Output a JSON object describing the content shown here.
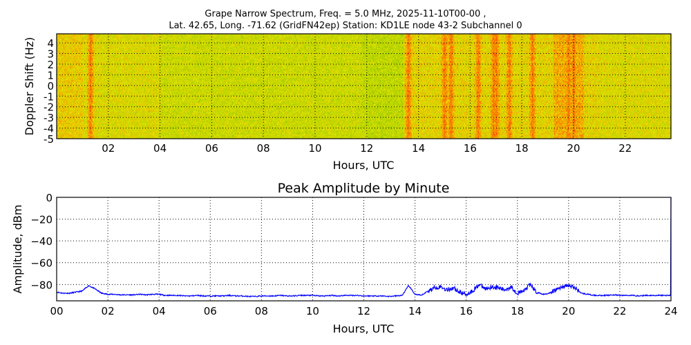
{
  "chart_data": [
    {
      "type": "heatmap",
      "title_line1": "Grape Narrow Spectrum, Freq. = 5.0 MHz, 2025-11-10T00-00 ,",
      "title_line2": "Lat.  42.65, Long. -71.62 (GridFN42ep) Station: KD1LE node 43-2 Subchannel 0",
      "xlabel": "Hours, UTC",
      "ylabel": "Doppler Shift (Hz)",
      "xlim": [
        0,
        23.77
      ],
      "ylim": [
        -5,
        4.85
      ],
      "xticks": [
        2,
        4,
        6,
        8,
        10,
        12,
        14,
        16,
        18,
        20,
        22
      ],
      "xtick_labels": [
        "02",
        "04",
        "06",
        "08",
        "10",
        "12",
        "14",
        "16",
        "18",
        "20",
        "22"
      ],
      "yticks": [
        -5,
        -4,
        -3,
        -2,
        -1,
        0,
        1,
        2,
        3,
        4
      ],
      "ytick_labels": [
        "-5",
        "-4",
        "-3",
        "-2",
        "-1",
        "0",
        "1",
        "2",
        "3",
        "4"
      ],
      "grid": true,
      "strong_signal_hours": [
        1.3,
        13.6,
        15.0,
        15.25,
        16.3,
        16.9,
        17.0,
        17.5,
        18.4,
        19.8,
        20.0
      ],
      "colors": {
        "low": "#7fbf00",
        "mid": "#e8e800",
        "high": "#ff5a00"
      }
    },
    {
      "type": "line",
      "title": "Peak Amplitude by Minute",
      "xlabel": "Hours, UTC",
      "ylabel": "Amplitude, dBm",
      "xlim": [
        0,
        24
      ],
      "ylim": [
        -95,
        0
      ],
      "xticks": [
        0,
        2,
        4,
        6,
        8,
        10,
        12,
        14,
        16,
        18,
        20,
        22,
        24
      ],
      "xtick_labels": [
        "00",
        "02",
        "04",
        "06",
        "08",
        "10",
        "12",
        "14",
        "16",
        "18",
        "20",
        "22",
        "24"
      ],
      "yticks": [
        0,
        -20,
        -40,
        -60,
        -80
      ],
      "ytick_labels": [
        "0",
        "−20",
        "−40",
        "−60",
        "−80"
      ],
      "grid": true,
      "color": "#0000ff",
      "x_step_hours": 0.25,
      "values": [
        -87,
        -88,
        -88,
        -87,
        -86,
        -81,
        -84,
        -88,
        -89,
        -89,
        -89.5,
        -89.5,
        -89.5,
        -89,
        -89.5,
        -89,
        -89,
        -90,
        -90,
        -90,
        -90.5,
        -90.5,
        -90,
        -90.5,
        -90.5,
        -90.5,
        -90.5,
        -90,
        -90.5,
        -90.5,
        -91,
        -91,
        -90.5,
        -90.5,
        -90.5,
        -90,
        -90.5,
        -90.5,
        -90,
        -90,
        -90,
        -90.5,
        -90.5,
        -90,
        -90.5,
        -90,
        -90,
        -90,
        -90.5,
        -90.5,
        -90.5,
        -90.5,
        -91,
        -90.5,
        -90,
        -81,
        -89,
        -90,
        -86,
        -83,
        -82,
        -85,
        -83,
        -87,
        -89,
        -86,
        -80,
        -84,
        -82,
        -83,
        -85,
        -82,
        -88,
        -86,
        -80,
        -87,
        -89,
        -88,
        -85,
        -82,
        -81,
        -83,
        -88,
        -89,
        -90,
        -90,
        -90,
        -89.5,
        -90,
        -90,
        -90,
        -90.5,
        -90,
        -90,
        -90,
        -90,
        0
      ]
    }
  ]
}
